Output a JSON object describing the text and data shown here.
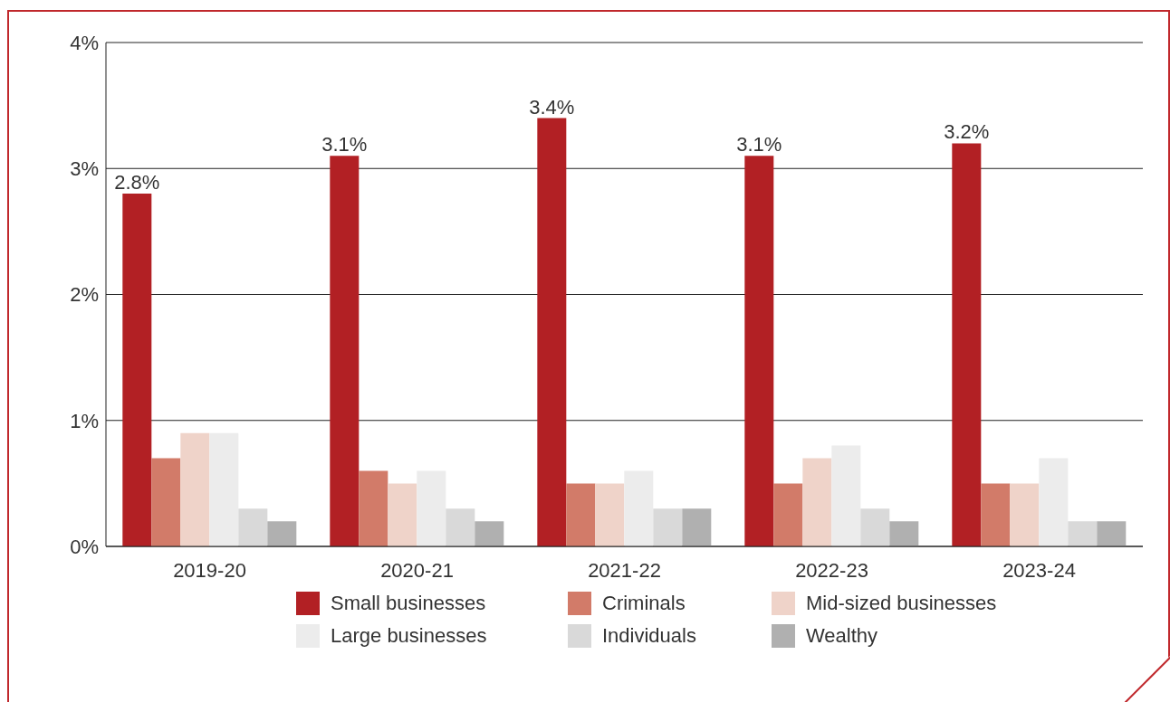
{
  "chart_data": {
    "type": "bar",
    "categories": [
      "2019-20",
      "2020-21",
      "2021-22",
      "2022-23",
      "2023-24"
    ],
    "series": [
      {
        "name": "Small businesses",
        "color": "#b22024",
        "values": [
          2.8,
          3.1,
          3.4,
          3.1,
          3.2
        ],
        "value_labels": [
          "2.8%",
          "3.1%",
          "3.4%",
          "3.1%",
          "3.2%"
        ]
      },
      {
        "name": "Criminals",
        "color": "#d27b69",
        "values": [
          0.7,
          0.6,
          0.5,
          0.5,
          0.5
        ]
      },
      {
        "name": "Mid-sized businesses",
        "color": "#efd3c9",
        "values": [
          0.9,
          0.5,
          0.5,
          0.7,
          0.5
        ]
      },
      {
        "name": "Large businesses",
        "color": "#ececec",
        "values": [
          0.9,
          0.6,
          0.6,
          0.8,
          0.7
        ]
      },
      {
        "name": "Individuals",
        "color": "#d9d9d9",
        "values": [
          0.3,
          0.3,
          0.3,
          0.3,
          0.2
        ]
      },
      {
        "name": "Wealthy",
        "color": "#b0b0b0",
        "values": [
          0.2,
          0.2,
          0.3,
          0.2,
          0.2
        ]
      }
    ],
    "ylim": [
      0,
      4
    ],
    "yticks": [
      {
        "value": 0,
        "label": "0%"
      },
      {
        "value": 1,
        "label": "1%"
      },
      {
        "value": 2,
        "label": "2%"
      },
      {
        "value": 3,
        "label": "3%"
      },
      {
        "value": 4,
        "label": "4%"
      }
    ],
    "grid": "y",
    "legend": "bottom"
  }
}
